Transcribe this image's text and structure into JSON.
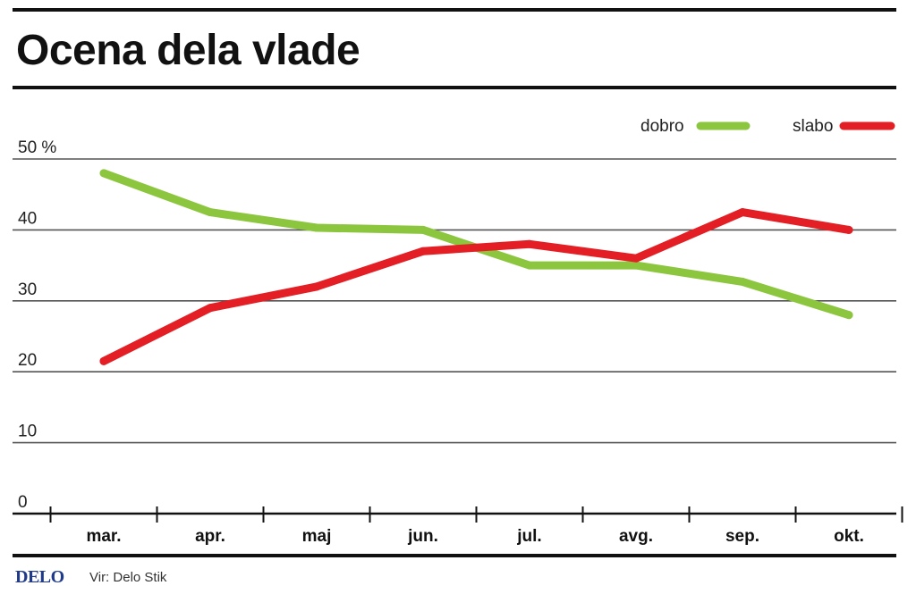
{
  "chart_data": {
    "type": "line",
    "title": "Ocena dela vlade",
    "ylabel": "%",
    "categories": [
      "mar.",
      "apr.",
      "maj",
      "jun.",
      "jul.",
      "avg.",
      "sep.",
      "okt."
    ],
    "ylim": [
      0,
      50
    ],
    "yticks": [
      {
        "value": 0,
        "label": "0"
      },
      {
        "value": 10,
        "label": "10"
      },
      {
        "value": 20,
        "label": "20"
      },
      {
        "value": 30,
        "label": "30"
      },
      {
        "value": 40,
        "label": "40"
      },
      {
        "value": 50,
        "label": "50 %"
      }
    ],
    "grid": true,
    "legend_position": "top-right",
    "series": [
      {
        "name": "dobro",
        "color": "#8cc63f",
        "values": [
          48,
          42.5,
          40.3,
          40,
          35,
          35,
          32.7,
          28
        ]
      },
      {
        "name": "slabo",
        "color": "#e31e24",
        "values": [
          21.5,
          29,
          32,
          37,
          38,
          36,
          42.5,
          40
        ]
      }
    ]
  },
  "footer": {
    "logo": "DELO",
    "source": "Vir: Delo Stik"
  }
}
